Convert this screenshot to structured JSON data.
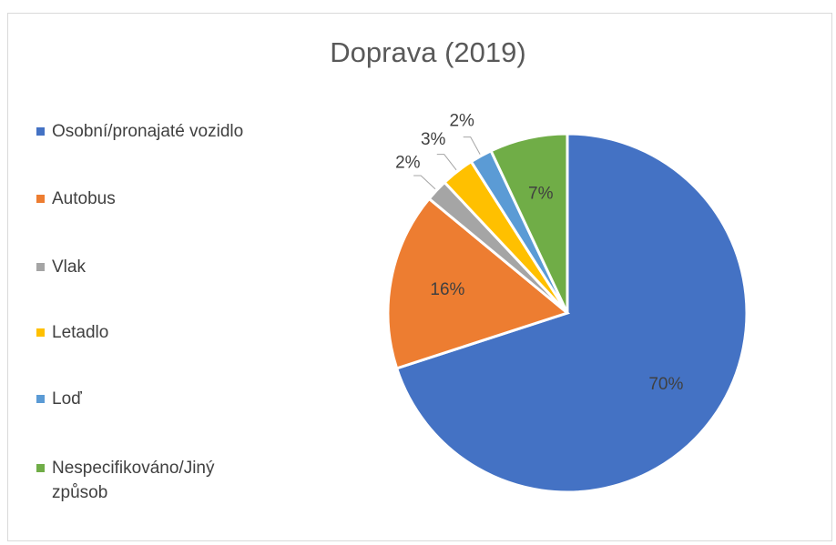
{
  "chart_data": {
    "type": "pie",
    "title": "Doprava (2019)",
    "categories": [
      "Osobní/pronajaté vozidlo",
      "Autobus",
      "Vlak",
      "Letadlo",
      "Loď",
      "Nespecifikováno/Jiný způsob"
    ],
    "values": [
      70,
      16,
      2,
      3,
      2,
      7
    ],
    "value_labels": [
      "70%",
      "16%",
      "2%",
      "3%",
      "2%",
      "7%"
    ],
    "colors": [
      "#4472c4",
      "#ed7d31",
      "#a5a5a5",
      "#ffc000",
      "#5b9bd5",
      "#70ad47"
    ],
    "legend": "left"
  }
}
